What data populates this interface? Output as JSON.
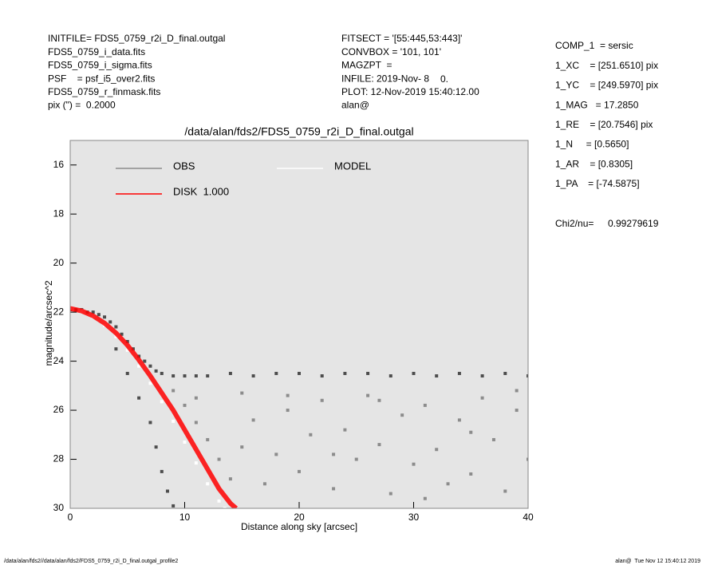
{
  "header_left": [
    "INITFILE= FDS5_0759_r2i_D_final.outgal",
    "FDS5_0759_i_data.fits",
    "FDS5_0759_i_sigma.fits",
    "PSF    = psf_i5_over2.fits",
    "FDS5_0759_r_finmask.fits",
    "pix (\") =  0.2000"
  ],
  "header_center": [
    "FITSECT = '[55:445,53:443]'",
    "CONVBOX = '101, 101'",
    "MAGZPT  =",
    "INFILE: 2019-Nov- 8",
    "PLOT: 12-Nov-2019 15:40:12.00",
    "alan@"
  ],
  "magzpt_value": "0.",
  "params": [
    "COMP_1  = sersic",
    "1_XC    = [251.6510] pix",
    "1_YC    = [249.5970] pix",
    "1_MAG   = 17.2850",
    "1_RE    = [20.7546] pix",
    "1_N     = [0.5650]",
    "1_AR    = [0.8305]",
    "1_PA    = [-74.5875]"
  ],
  "chi2_label": "Chi2/nu=",
  "chi2_value": "0.99279619",
  "footer_left": "/data/alan/fds2//data/alan/fds2/FDS5_0759_r2i_D_final.outgal_profile2",
  "footer_right": "alan@  Tue Nov 12 15:40:12 2019",
  "chart_data": {
    "type": "scatter",
    "title": "/data/alan/fds2/FDS5_0759_r2i_D_final.outgal",
    "xlabel": "Distance along sky [arcsec]",
    "ylabel": "magnitude/arcsec^2",
    "xlim": [
      0,
      40
    ],
    "ylim": [
      15,
      30
    ],
    "y_inverted": true,
    "xticks": [
      0,
      10,
      20,
      30,
      40
    ],
    "yticks": [
      16,
      18,
      20,
      22,
      24,
      26,
      28,
      30
    ],
    "background": "#e5e5e5",
    "series": [
      {
        "name": "OBS",
        "color": "#4d4d4d",
        "mode": "points",
        "x": [
          0,
          0.5,
          1,
          1.5,
          2,
          2.5,
          3,
          3.5,
          4,
          4.5,
          5,
          5.5,
          6,
          6.5,
          7,
          7.5,
          8,
          9,
          10,
          11,
          12,
          14,
          16,
          18,
          20,
          22,
          24,
          26,
          28,
          30,
          32,
          34,
          36,
          38,
          40,
          4,
          5,
          6,
          7,
          7.5,
          8,
          8.5,
          9
        ],
        "values": [
          21.9,
          21.9,
          21.9,
          22.0,
          22.0,
          22.1,
          22.2,
          22.4,
          22.6,
          22.9,
          23.2,
          23.5,
          23.8,
          24.0,
          24.2,
          24.4,
          24.5,
          24.6,
          24.6,
          24.6,
          24.6,
          24.5,
          24.6,
          24.5,
          24.5,
          24.6,
          24.5,
          24.5,
          24.6,
          24.5,
          24.6,
          24.5,
          24.6,
          24.5,
          24.6,
          23.5,
          24.5,
          25.5,
          26.5,
          27.5,
          28.5,
          29.3,
          29.9
        ]
      },
      {
        "color": "#8c8c8c",
        "mode": "points",
        "x": [
          9,
          10,
          11,
          12,
          13,
          14,
          15,
          16,
          17,
          18,
          19,
          20,
          21,
          22,
          23,
          24,
          25,
          26,
          27,
          28,
          29,
          30,
          31,
          32,
          33,
          34,
          35,
          36,
          37,
          38,
          39,
          40,
          11,
          15,
          19,
          23,
          27,
          31,
          35,
          39
        ],
        "values": [
          25.2,
          25.8,
          26.5,
          27.2,
          28.0,
          28.8,
          27.5,
          26.4,
          29.0,
          27.8,
          26.0,
          28.5,
          27.0,
          25.6,
          29.2,
          26.8,
          28.0,
          25.4,
          27.4,
          29.4,
          26.2,
          28.2,
          25.8,
          27.6,
          29.0,
          26.4,
          28.6,
          25.5,
          27.2,
          29.3,
          26.0,
          28.0,
          25.5,
          25.3,
          25.4,
          27.8,
          25.6,
          29.6,
          26.9,
          25.2
        ]
      },
      {
        "name": "MODEL",
        "color": "#ffffff",
        "mode": "points",
        "x": [
          0,
          1,
          2,
          3,
          4,
          5,
          6,
          7,
          8,
          9,
          10,
          11,
          12,
          13,
          13.5
        ],
        "values": [
          21.85,
          21.95,
          22.2,
          22.55,
          23.0,
          23.55,
          24.2,
          24.9,
          25.65,
          26.45,
          27.3,
          28.15,
          29.0,
          29.7,
          30.0
        ]
      },
      {
        "name": "DISK  1.000",
        "color": "#ff0000",
        "mode": "line",
        "x": [
          0,
          1,
          2,
          3,
          4,
          5,
          6,
          7,
          8,
          9,
          10,
          11,
          12,
          13,
          14,
          14.5
        ],
        "values": [
          21.85,
          21.95,
          22.15,
          22.45,
          22.85,
          23.35,
          23.95,
          24.6,
          25.3,
          26.0,
          26.8,
          27.6,
          28.4,
          29.2,
          29.8,
          30.0
        ]
      }
    ]
  }
}
